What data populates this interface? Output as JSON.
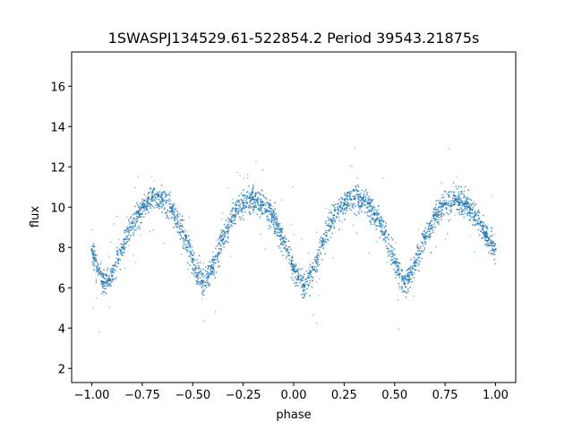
{
  "chart_data": {
    "type": "scatter",
    "title": "1SWASPJ134529.61-522854.2 Period 39543.21875s",
    "xlabel": "phase",
    "ylabel": "flux",
    "xlim": [
      -1.1,
      1.1
    ],
    "ylim": [
      1.3,
      17.7
    ],
    "xticks": [
      -1.0,
      -0.75,
      -0.5,
      -0.25,
      0.0,
      0.25,
      0.5,
      0.75,
      1.0
    ],
    "xtick_labels": [
      "−1.00",
      "−0.75",
      "−0.50",
      "−0.25",
      "0.00",
      "0.25",
      "0.50",
      "0.75",
      "1.00"
    ],
    "yticks": [
      2,
      4,
      6,
      8,
      10,
      12,
      14,
      16
    ],
    "ytick_labels": [
      "2",
      "4",
      "6",
      "8",
      "10",
      "12",
      "14",
      "16"
    ],
    "grid": false,
    "marker_color": "#1f77b4",
    "series": [
      {
        "x": [
          -1.0,
          -0.95,
          -0.9,
          -0.85,
          -0.8,
          -0.75,
          -0.7,
          -0.65,
          -0.6,
          -0.55,
          -0.5,
          -0.45,
          -0.4,
          -0.35,
          -0.3,
          -0.25,
          -0.2,
          -0.15,
          -0.1,
          -0.05,
          0.0,
          0.05,
          0.1,
          0.15,
          0.2,
          0.25,
          0.3,
          0.35,
          0.4,
          0.45,
          0.5,
          0.55,
          0.6,
          0.65,
          0.7,
          0.75,
          0.8,
          0.85,
          0.9,
          0.95,
          1.0
        ],
        "y": [
          7.9,
          6.3,
          6.6,
          8.0,
          9.2,
          10.0,
          10.5,
          10.4,
          9.8,
          8.8,
          7.4,
          6.3,
          7.0,
          8.4,
          9.6,
          10.2,
          10.4,
          10.1,
          9.5,
          8.3,
          6.9,
          6.1,
          6.9,
          8.3,
          9.6,
          10.2,
          10.4,
          10.3,
          9.7,
          8.7,
          7.3,
          6.2,
          7.1,
          8.5,
          9.6,
          10.2,
          10.4,
          10.2,
          9.6,
          8.7,
          7.9
        ]
      }
    ]
  }
}
